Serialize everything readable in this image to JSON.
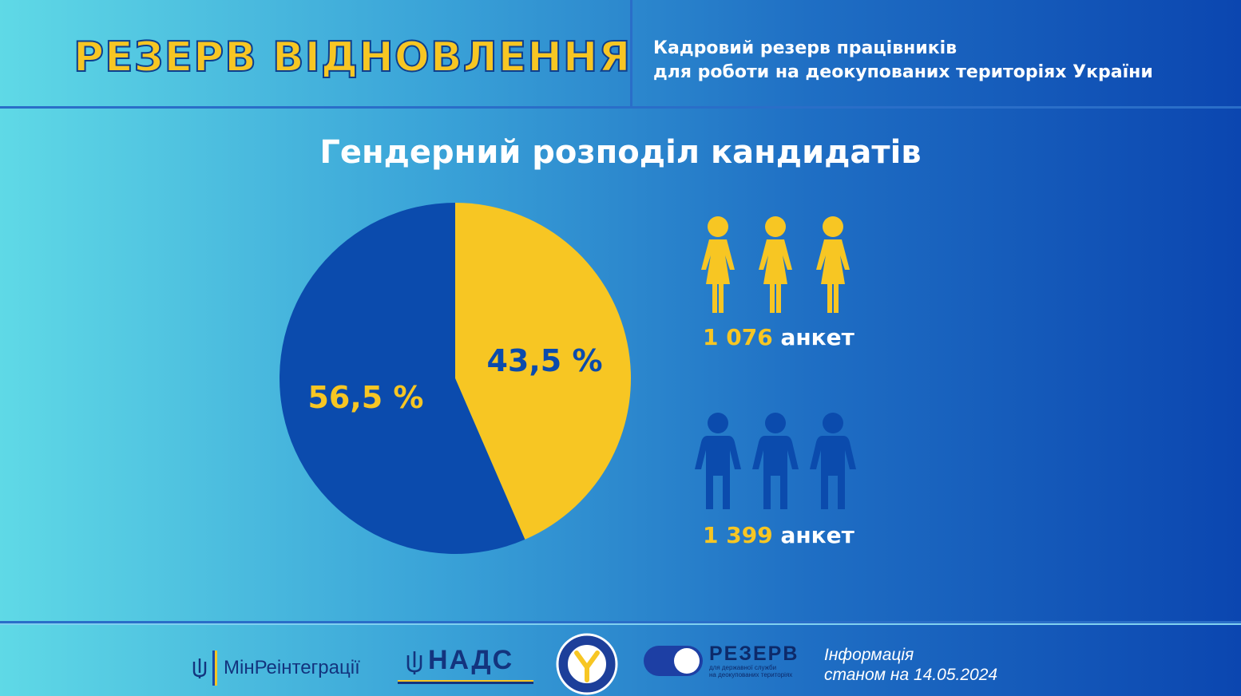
{
  "header": {
    "brand_title": "РЕЗЕРВ ВІДНОВЛЕННЯ",
    "subtitle_line1": "Кадровий резерв працівників",
    "subtitle_line2": "для роботи на деокупованих територіях України"
  },
  "colors": {
    "yellow": "#f7c623",
    "blue": "#0b4bad",
    "white": "#ffffff"
  },
  "chart_data": {
    "type": "pie",
    "title": "Гендерний розподіл кандидатів",
    "slices": [
      {
        "label": "43,5 %",
        "value": 43.5,
        "color": "#f7c623",
        "label_color": "#0b4bad"
      },
      {
        "label": "56,5 %",
        "value": 56.5,
        "color": "#0b4bad",
        "label_color": "#f7c623"
      }
    ],
    "start_angle_deg": 0,
    "direction": "clockwise"
  },
  "stats": {
    "women": {
      "number": "1 076",
      "unit": "анкет",
      "icon": "female-figures-icon",
      "count_icons": 3
    },
    "men": {
      "number": "1 399",
      "unit": "анкет",
      "icon": "male-figures-icon",
      "count_icons": 3
    }
  },
  "footer": {
    "logos": {
      "minreintegration": "МінРеінтеграції",
      "nads": "НАДС",
      "reserve_big": "РЕЗЕРВ",
      "reserve_small_line1": "для державної служби",
      "reserve_small_line2": "на деокупованих територіях"
    },
    "info_line1": "Інформація",
    "info_line2": "станом на 14.05.2024"
  }
}
